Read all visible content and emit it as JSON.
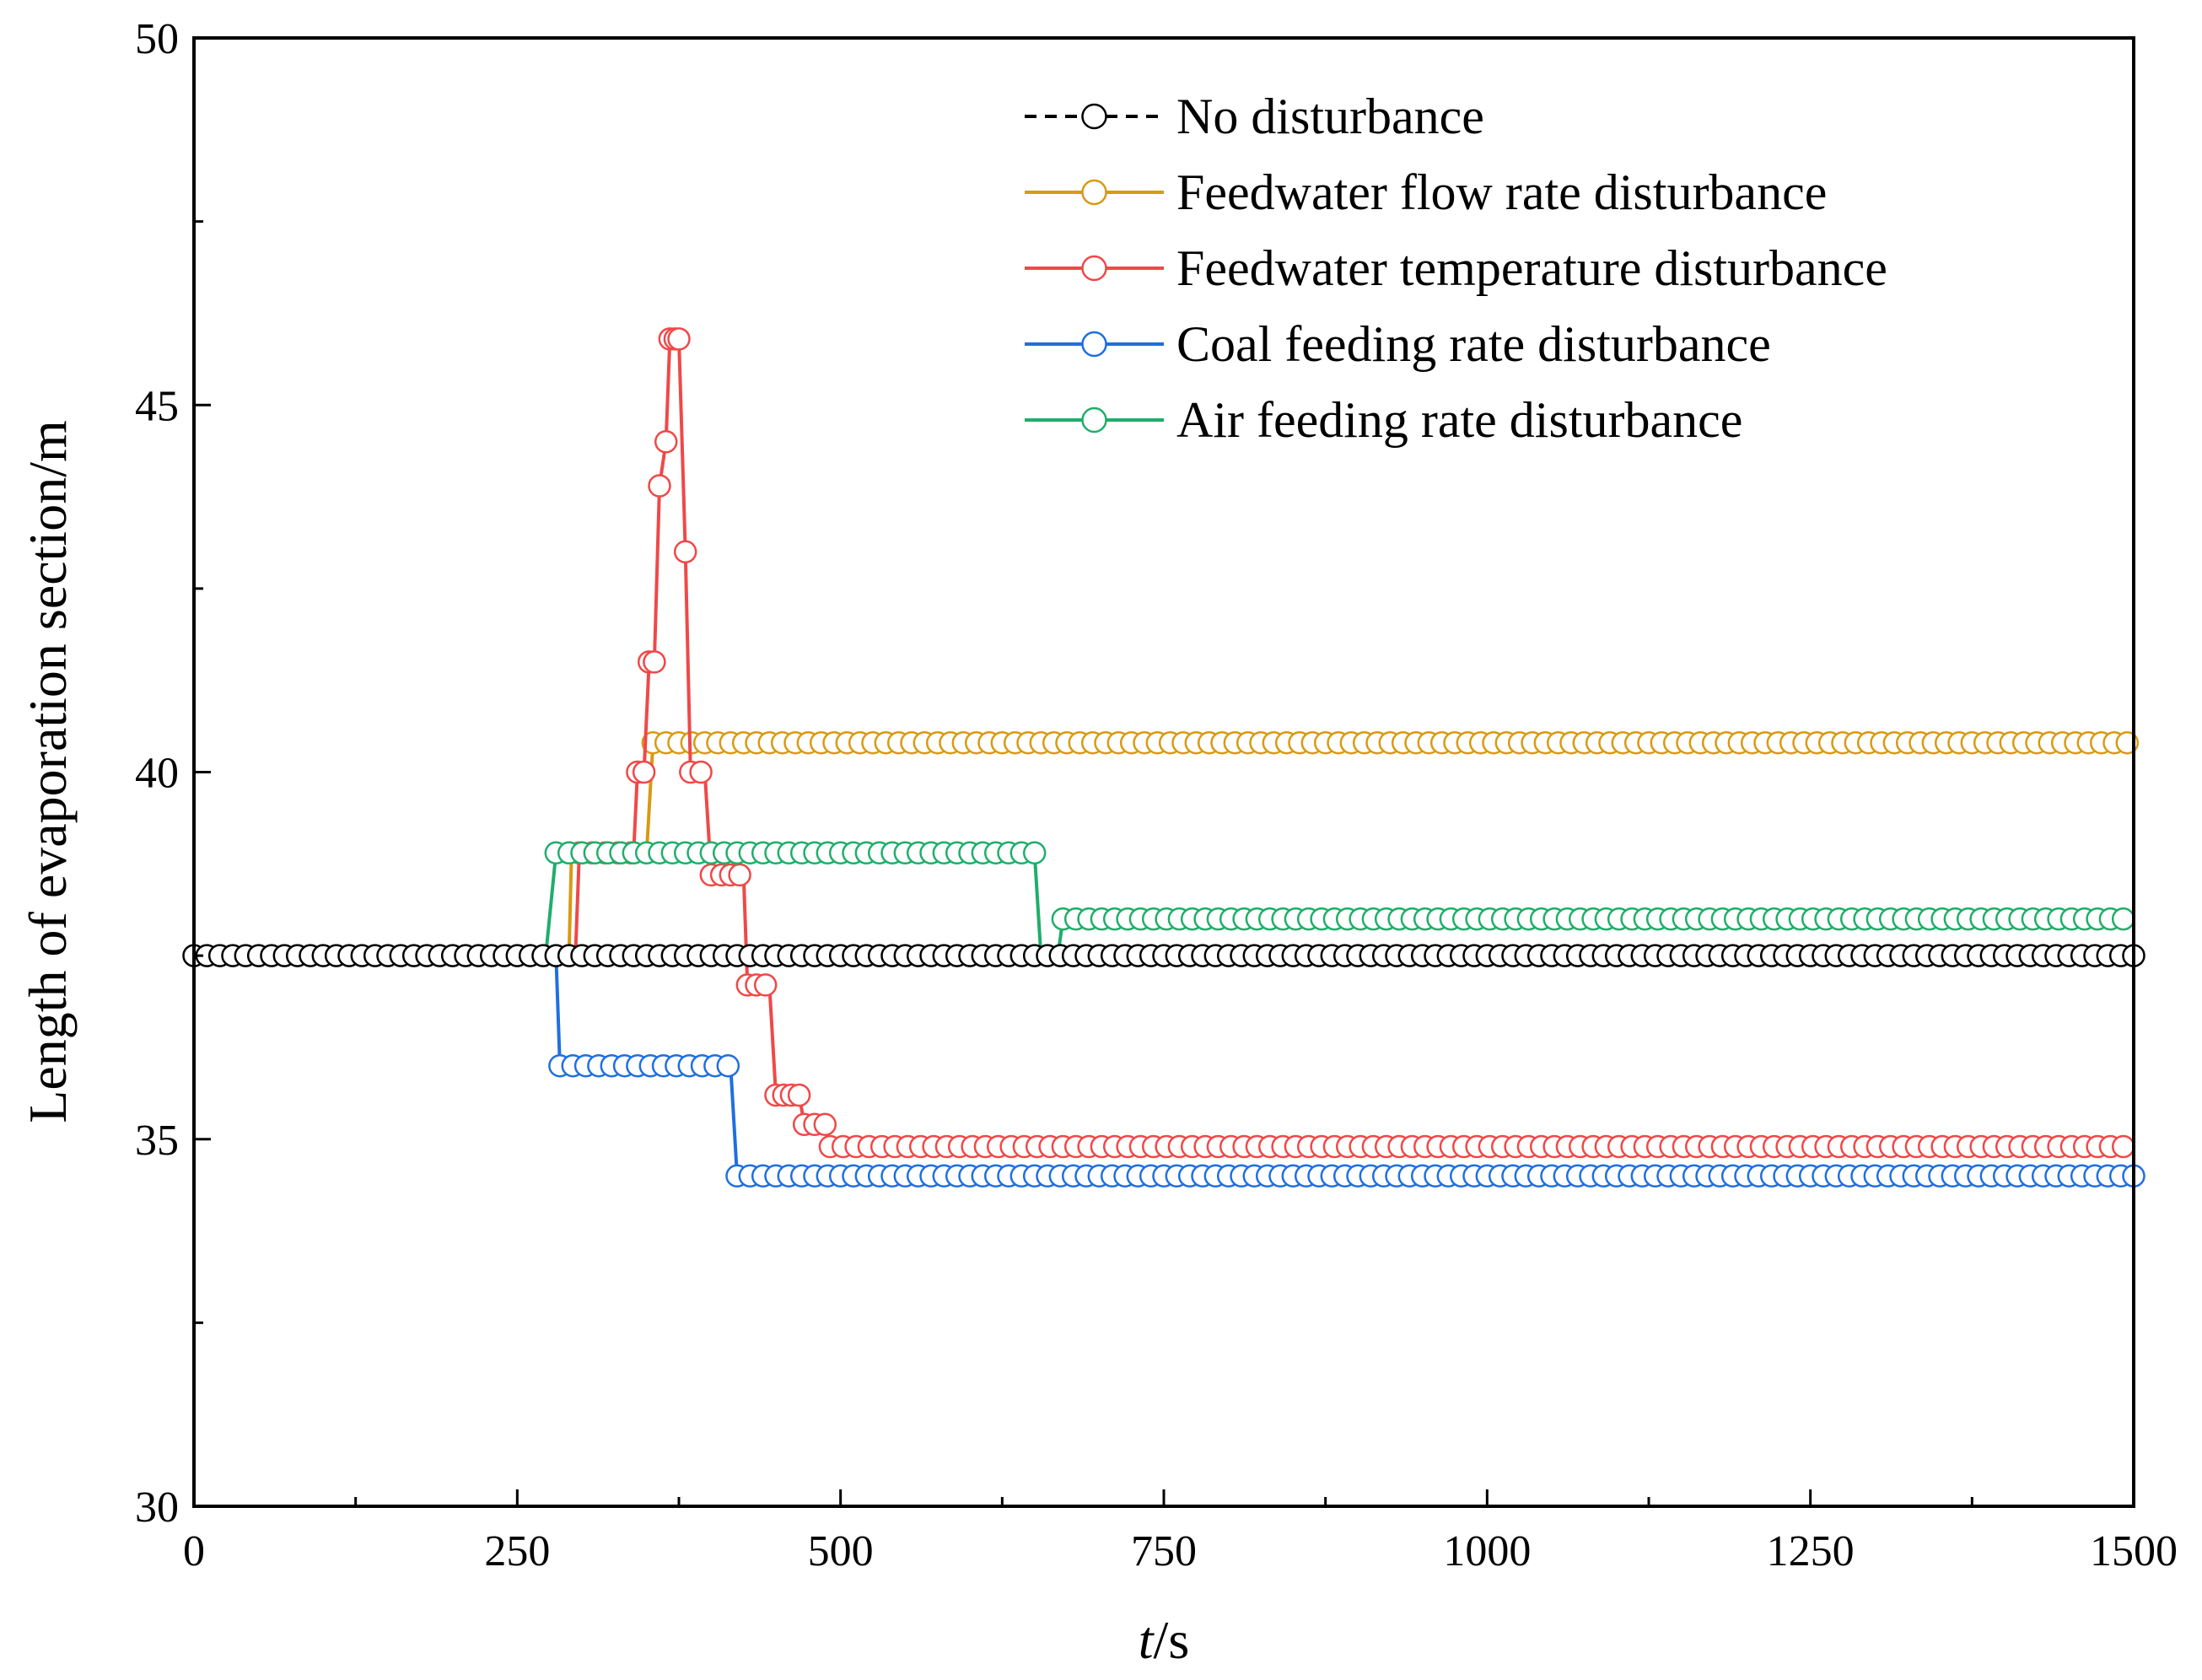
{
  "chart_data": {
    "type": "line",
    "title": "",
    "xlabel_italic": "t",
    "xlabel_unit": "/s",
    "ylabel": "Length of  evaporation section/m",
    "xlim": [
      0,
      1500
    ],
    "ylim": [
      30,
      50
    ],
    "x_ticks": [
      "0",
      "250",
      "500",
      "750",
      "1000",
      "1250",
      "1500"
    ],
    "x_tick_values": [
      0,
      250,
      500,
      750,
      1000,
      1250,
      1500
    ],
    "y_ticks": [
      "30",
      "35",
      "40",
      "45",
      "50"
    ],
    "y_tick_values": [
      30,
      35,
      40,
      45,
      50
    ],
    "grid": false,
    "legend_position": "top-right",
    "marker": "open-circle",
    "series": [
      {
        "name": "No disturbance",
        "color": "#000000",
        "line_style": "dashed",
        "steps": [
          [
            0,
            37.5
          ],
          [
            1500,
            37.5
          ]
        ],
        "marker_ranges": [
          [
            0,
            1500,
            37.5
          ]
        ]
      },
      {
        "name": "Feedwater flow rate disturbance",
        "color": "#d89a12",
        "line_style": "solid",
        "steps": [
          [
            0,
            37.5
          ],
          [
            290,
            37.5
          ],
          [
            292,
            38.9
          ],
          [
            350,
            38.9
          ],
          [
            355,
            40.4
          ],
          [
            1500,
            40.4
          ]
        ],
        "marker_ranges": [
          [
            290,
            345,
            38.9
          ],
          [
            355,
            1500,
            40.4
          ]
        ]
      },
      {
        "name": "Feedwater temperature disturbance",
        "color": "#f04848",
        "line_style": "solid",
        "points": [
          [
            0,
            37.5
          ],
          [
            295,
            37.5
          ],
          [
            298,
            38.9
          ],
          [
            340,
            38.9
          ],
          [
            343,
            40
          ],
          [
            348,
            40
          ],
          [
            352,
            41.5
          ],
          [
            356,
            41.5
          ],
          [
            360,
            43.9
          ],
          [
            365,
            44.5
          ],
          [
            368,
            45.9
          ],
          [
            375,
            45.9
          ],
          [
            380,
            43
          ],
          [
            384,
            40
          ],
          [
            395,
            40
          ],
          [
            400,
            38.6
          ],
          [
            425,
            38.6
          ],
          [
            428,
            37.1
          ],
          [
            445,
            37.1
          ],
          [
            450,
            35.6
          ],
          [
            468,
            35.6
          ],
          [
            472,
            35.2
          ],
          [
            488,
            35.2
          ],
          [
            492,
            34.9
          ],
          [
            1500,
            34.9
          ]
        ],
        "markers": [
          [
            343,
            40
          ],
          [
            348,
            40
          ],
          [
            352,
            41.5
          ],
          [
            356,
            41.5
          ],
          [
            360,
            43.9
          ],
          [
            365,
            44.5
          ],
          [
            368,
            45.9
          ],
          [
            372,
            45.9
          ],
          [
            375,
            45.9
          ],
          [
            380,
            43
          ],
          [
            384,
            40
          ],
          [
            392,
            40
          ],
          [
            400,
            38.6
          ],
          [
            408,
            38.6
          ],
          [
            415,
            38.6
          ],
          [
            422,
            38.6
          ],
          [
            428,
            37.1
          ],
          [
            435,
            37.1
          ],
          [
            442,
            37.1
          ],
          [
            450,
            35.6
          ],
          [
            456,
            35.6
          ],
          [
            462,
            35.6
          ],
          [
            468,
            35.6
          ],
          [
            472,
            35.2
          ],
          [
            480,
            35.2
          ],
          [
            488,
            35.2
          ]
        ],
        "marker_ranges": [
          [
            298,
            340,
            38.9
          ],
          [
            492,
            1500,
            34.9
          ]
        ]
      },
      {
        "name": "Coal feeding rate disturbance",
        "color": "#1f6fe0",
        "line_style": "solid",
        "steps": [
          [
            0,
            37.5
          ],
          [
            280,
            37.5
          ],
          [
            283,
            36
          ],
          [
            415,
            36
          ],
          [
            420,
            34.5
          ],
          [
            1500,
            34.5
          ]
        ],
        "marker_ranges": [
          [
            283,
            415,
            36
          ],
          [
            420,
            1500,
            34.5
          ]
        ]
      },
      {
        "name": "Air feeding rate disturbance",
        "color": "#1fae6a",
        "line_style": "solid",
        "steps": [
          [
            0,
            37.5
          ],
          [
            272,
            37.5
          ],
          [
            280,
            38.9
          ],
          [
            650,
            38.9
          ],
          [
            655,
            37.5
          ],
          [
            668,
            37.5
          ],
          [
            672,
            38
          ],
          [
            1500,
            38
          ]
        ],
        "marker_ranges": [
          [
            280,
            650,
            38.9
          ],
          [
            672,
            1500,
            38
          ]
        ]
      }
    ]
  }
}
